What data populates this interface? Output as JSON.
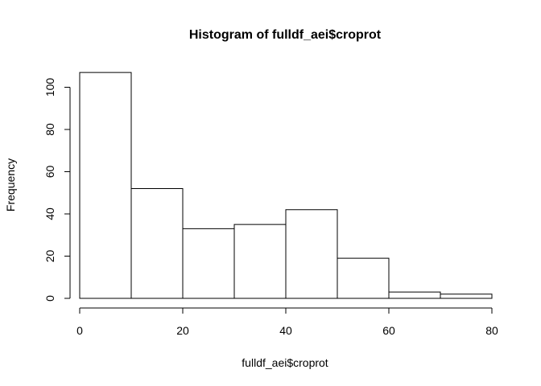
{
  "chart_data": {
    "type": "bar",
    "title": "Histogram of fulldf_aei$croprot",
    "xlabel": "fulldf_aei$croprot",
    "ylabel": "Frequency",
    "bins": [
      {
        "from": 0,
        "to": 10,
        "count": 107
      },
      {
        "from": 10,
        "to": 20,
        "count": 52
      },
      {
        "from": 20,
        "to": 30,
        "count": 33
      },
      {
        "from": 30,
        "to": 40,
        "count": 35
      },
      {
        "from": 40,
        "to": 50,
        "count": 42
      },
      {
        "from": 50,
        "to": 60,
        "count": 19
      },
      {
        "from": 60,
        "to": 70,
        "count": 3
      },
      {
        "from": 70,
        "to": 80,
        "count": 2
      }
    ],
    "xlim": [
      0,
      80
    ],
    "ylim": [
      0,
      107
    ],
    "x_ticks": [
      0,
      20,
      40,
      60,
      80
    ],
    "y_ticks": [
      0,
      20,
      40,
      60,
      80,
      100
    ],
    "grid": false,
    "legend": "none",
    "colors": {
      "bar_fill": "#ffffff",
      "bar_stroke": "#000000"
    }
  }
}
